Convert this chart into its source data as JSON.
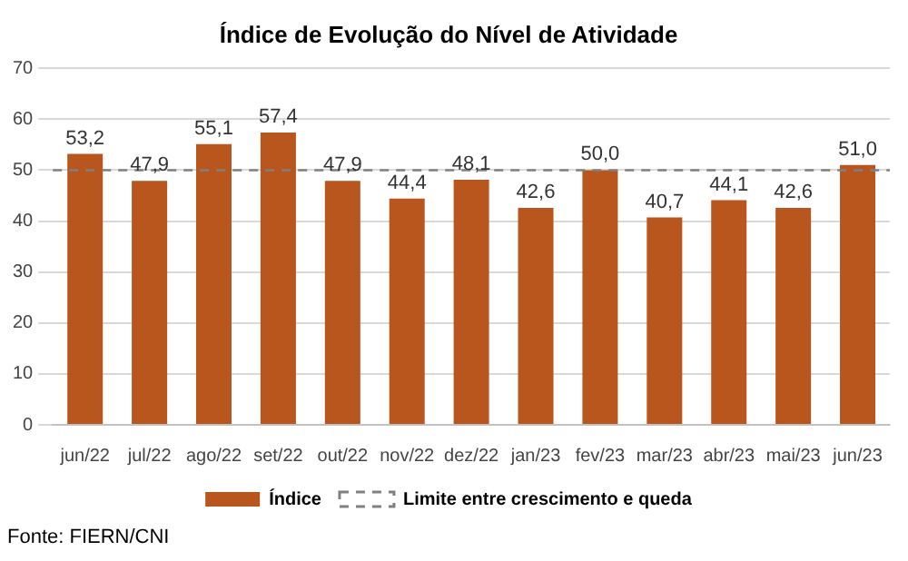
{
  "chart_data": {
    "type": "bar",
    "title": "Índice de Evolução do Nível de Atividade",
    "categories": [
      "jun/22",
      "jul/22",
      "ago/22",
      "set/22",
      "out/22",
      "nov/22",
      "dez/22",
      "jan/23",
      "fev/23",
      "mar/23",
      "abr/23",
      "mai/23",
      "jun/23"
    ],
    "series": [
      {
        "name": "Índice",
        "color": "#b8561e",
        "values": [
          53.2,
          47.9,
          55.1,
          57.4,
          47.9,
          44.4,
          48.1,
          42.6,
          50.0,
          40.7,
          44.1,
          42.6,
          51.0
        ]
      }
    ],
    "value_labels": [
      "53,2",
      "47,9",
      "55,1",
      "57,4",
      "47,9",
      "44,4",
      "48,1",
      "42,6",
      "50,0",
      "40,7",
      "44,1",
      "42,6",
      "51,0"
    ],
    "ylim": [
      0,
      70
    ],
    "yticks": [
      0,
      10,
      20,
      30,
      40,
      50,
      60,
      70
    ],
    "grid": "y",
    "legend": "bottom",
    "ref_lines": [
      {
        "axis": "y",
        "value": 50,
        "label": "Limite entre crescimento e queda",
        "color": "#808080",
        "line_style": "dashed"
      }
    ],
    "annotations": [
      "Fonte: FIERN/CNI"
    ]
  }
}
